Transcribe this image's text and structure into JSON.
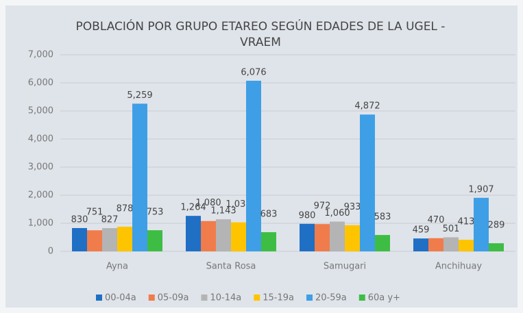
{
  "chart_data": {
    "type": "bar",
    "title": "POBLACIÓN POR GRUPO  ETAREO SEGÚN  EDADES DE LA UGEL - VRAEM",
    "categories": [
      "Ayna",
      "Santa Rosa",
      "Samugari",
      "Anchihuay"
    ],
    "series": [
      {
        "name": "00-04a",
        "color": "#1f6fc5",
        "values": [
          830,
          1264,
          980,
          459
        ],
        "value_labels": [
          "830",
          "1,264",
          "980",
          "459"
        ]
      },
      {
        "name": "05-09a",
        "color": "#f07c4c",
        "values": [
          751,
          1080,
          972,
          470
        ],
        "value_labels": [
          "751",
          "1,080",
          "972",
          "470"
        ]
      },
      {
        "name": "10-14a",
        "color": "#b4b4b4",
        "values": [
          827,
          1143,
          1060,
          501
        ],
        "value_labels": [
          "827",
          "1,143",
          "1,060",
          "501"
        ]
      },
      {
        "name": "15-19a",
        "color": "#ffc400",
        "values": [
          878,
          1033,
          933,
          413
        ],
        "value_labels": [
          "878",
          "1,033",
          "933",
          "413"
        ]
      },
      {
        "name": "20-59a",
        "color": "#3e9fe6",
        "values": [
          5259,
          6076,
          4872,
          1907
        ],
        "value_labels": [
          "5,259",
          "6,076",
          "4,872",
          "1,907"
        ]
      },
      {
        "name": "60a y+",
        "color": "#3ebd45",
        "values": [
          753,
          683,
          583,
          289
        ],
        "value_labels": [
          "753",
          "683",
          "583",
          "289"
        ]
      }
    ],
    "ylim": [
      0,
      7000
    ],
    "yticks": [
      0,
      {
        "value": 1000,
        "label": "1,000"
      },
      {
        "value": 2000,
        "label": "2,000"
      },
      {
        "value": 3000,
        "label": "3,000"
      },
      {
        "value": 4000,
        "label": "4,000"
      },
      {
        "value": 5000,
        "label": "5,000"
      },
      {
        "value": 6000,
        "label": "6,000"
      },
      {
        "value": 7000,
        "label": "7,000"
      }
    ],
    "grid": true
  }
}
